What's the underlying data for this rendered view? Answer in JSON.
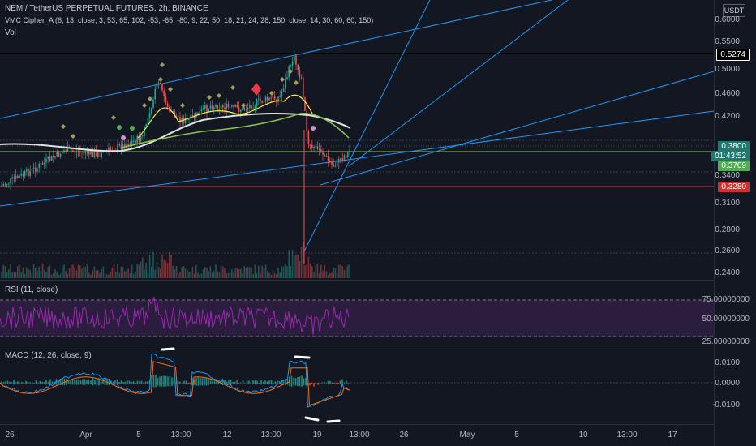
{
  "header": {
    "symbol_line": "NEM / TetherUS PERPETUAL FUTURES, 2h, BINANCE",
    "indicator_line": "VMC Cipher_A (6, 13, close, 3, 53, 65, 102, -53, -65, -80, 9, 22, 50, 18, 21, 24, 28, 150, close, 14, 30, 60, 60, 150)",
    "vol_label": "Vol"
  },
  "price_axis": {
    "unit": "USDT",
    "ticks": [
      "0.6000",
      "0.5500",
      "0.5000",
      "0.4600",
      "0.4200",
      "0.3800",
      "0.3400",
      "0.3100",
      "0.2800",
      "0.2600",
      "0.2400"
    ],
    "tags": {
      "resistance": "0.5274",
      "current_price": "0.3800",
      "countdown": "01:43:52",
      "ma": "0.3709",
      "support": "0.3280"
    }
  },
  "rsi": {
    "label": "RSI (11, close)",
    "ticks": [
      "75.00000000",
      "50.00000000",
      "25.00000000"
    ]
  },
  "macd": {
    "label": "MACD (12, 26, close, 9)",
    "ticks": [
      "0.0100",
      "0.0000",
      "-0.0100"
    ]
  },
  "time_axis": {
    "labels": [
      "26",
      "Apr",
      "5",
      "13:00",
      "12",
      "13:00",
      "19",
      "13:00",
      "26",
      "May",
      "5",
      "10",
      "13:00",
      "17"
    ]
  },
  "colors": {
    "background": "#131722",
    "trendline": "#2196f3",
    "resistance_line": "#000000",
    "support_line": "#f23645",
    "candle_up": "#26a69a",
    "candle_down": "#ef5350",
    "rsi_line": "#9c27b0",
    "macd_line": "#2196f3",
    "signal_line": "#ff6d00"
  }
}
